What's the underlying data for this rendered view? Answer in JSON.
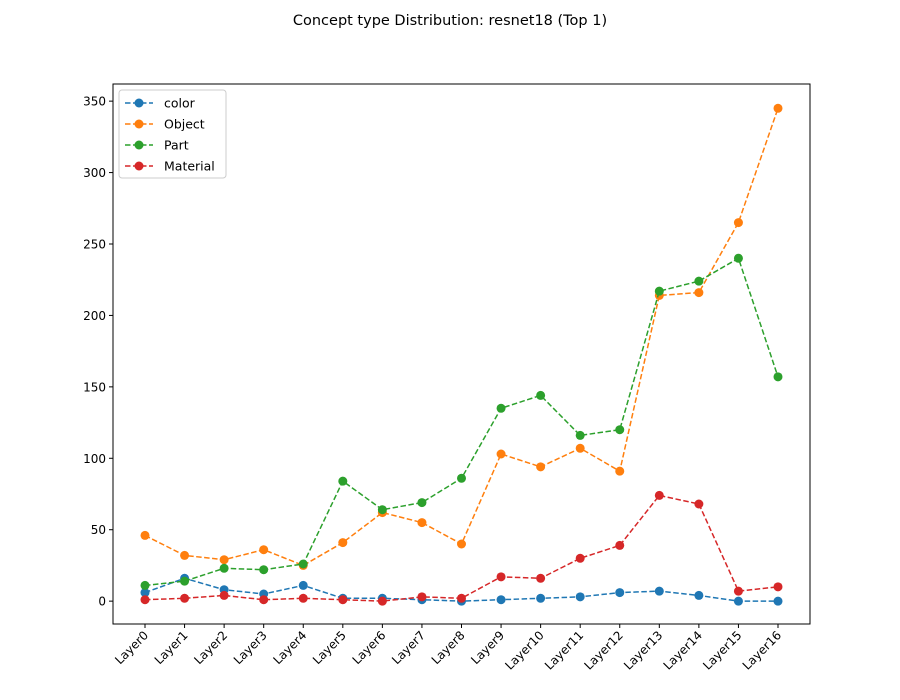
{
  "chart_data": {
    "type": "line",
    "title": "Concept type Distribution: resnet18 (Top 1)",
    "xlabel": "",
    "ylabel": "",
    "categories": [
      "Layer0",
      "Layer1",
      "Layer2",
      "Layer3",
      "Layer4",
      "Layer5",
      "Layer6",
      "Layer7",
      "Layer8",
      "Layer9",
      "Layer10",
      "Layer11",
      "Layer12",
      "Layer13",
      "Layer14",
      "Layer15",
      "Layer16"
    ],
    "ylim": [
      -16,
      362
    ],
    "yticks": [
      0,
      50,
      100,
      150,
      200,
      250,
      300,
      350
    ],
    "grid": false,
    "legend_position": "top-left",
    "line_style": "dashed",
    "marker": "circle",
    "series": [
      {
        "name": "color",
        "color": "#1f77b4",
        "values": [
          6,
          16,
          8,
          5,
          11,
          2,
          2,
          1,
          0,
          1,
          2,
          3,
          6,
          7,
          4,
          0,
          0
        ]
      },
      {
        "name": "Object",
        "color": "#ff7f0e",
        "values": [
          46,
          32,
          29,
          36,
          25,
          41,
          62,
          55,
          40,
          103,
          94,
          107,
          91,
          214,
          216,
          265,
          345
        ]
      },
      {
        "name": "Part",
        "color": "#2ca02c",
        "values": [
          11,
          14,
          23,
          22,
          26,
          84,
          64,
          69,
          86,
          135,
          144,
          116,
          120,
          217,
          224,
          240,
          157
        ]
      },
      {
        "name": "Material",
        "color": "#d62728",
        "values": [
          1,
          2,
          4,
          1,
          2,
          1,
          0,
          3,
          2,
          17,
          16,
          30,
          39,
          74,
          68,
          7,
          10
        ]
      }
    ]
  }
}
